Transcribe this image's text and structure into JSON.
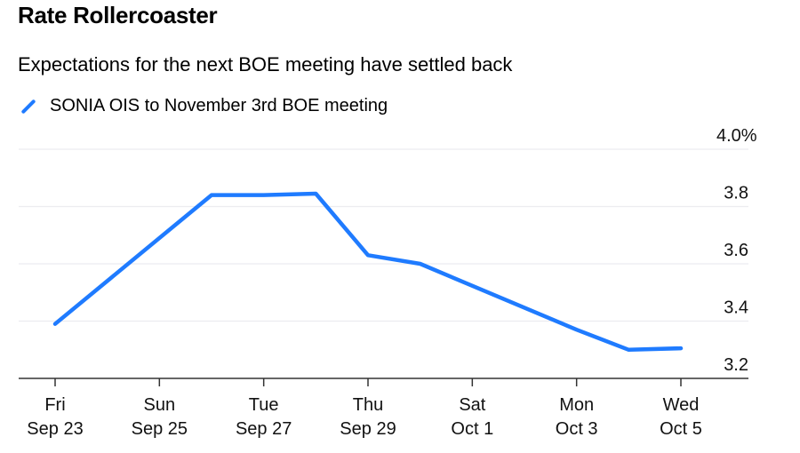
{
  "chart_data": {
    "type": "line",
    "title": "Rate Rollercoaster",
    "subtitle": "Expectations for the next BOE meeting have settled back",
    "xlabel": "",
    "ylabel": "",
    "ylim": [
      3.2,
      4.0
    ],
    "yticks": [
      {
        "value": 4.0,
        "label": "4.0%"
      },
      {
        "value": 3.8,
        "label": "3.8"
      },
      {
        "value": 3.6,
        "label": "3.6"
      },
      {
        "value": 3.4,
        "label": "3.4"
      },
      {
        "value": 3.2,
        "label": "3.2"
      }
    ],
    "xlim": [
      "2022-09-22",
      "2022-10-06"
    ],
    "xticks": [
      {
        "date": "2022-09-23",
        "line1": "Fri",
        "line2": "Sep 23"
      },
      {
        "date": "2022-09-25",
        "line1": "Sun",
        "line2": "Sep 25"
      },
      {
        "date": "2022-09-27",
        "line1": "Tue",
        "line2": "Sep 27"
      },
      {
        "date": "2022-09-29",
        "line1": "Thu",
        "line2": "Sep 29"
      },
      {
        "date": "2022-10-01",
        "line1": "Sat",
        "line2": "Oct 1"
      },
      {
        "date": "2022-10-03",
        "line1": "Mon",
        "line2": "Oct 3"
      },
      {
        "date": "2022-10-05",
        "line1": "Wed",
        "line2": "Oct 5"
      }
    ],
    "grid": true,
    "legend_position": "top-left",
    "series": [
      {
        "name": "SONIA OIS to November 3rd BOE meeting",
        "color": "#1f7bff",
        "points": [
          {
            "x": "2022-09-23",
            "y": 3.39
          },
          {
            "x": "2022-09-26",
            "y": 3.84
          },
          {
            "x": "2022-09-27",
            "y": 3.84
          },
          {
            "x": "2022-09-28",
            "y": 3.845
          },
          {
            "x": "2022-09-29",
            "y": 3.63
          },
          {
            "x": "2022-09-30",
            "y": 3.6
          },
          {
            "x": "2022-10-03",
            "y": 3.37
          },
          {
            "x": "2022-10-04",
            "y": 3.3
          },
          {
            "x": "2022-10-05",
            "y": 3.305
          }
        ]
      }
    ]
  }
}
